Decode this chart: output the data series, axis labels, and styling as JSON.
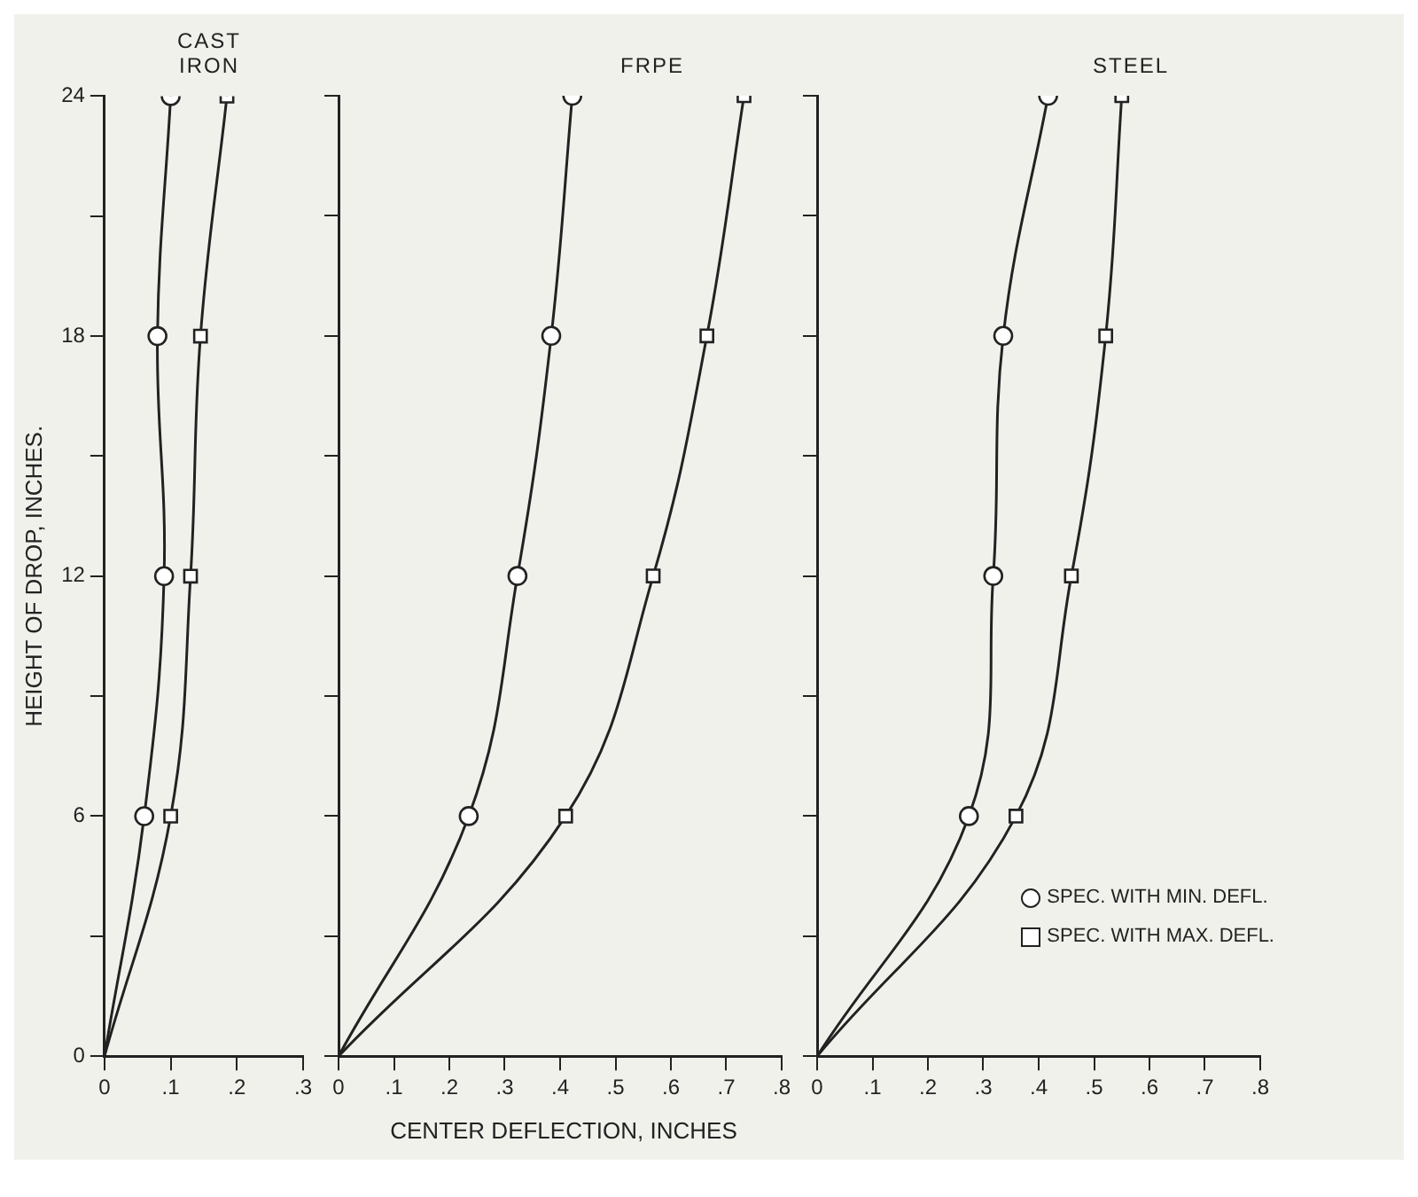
{
  "chart_data": [
    {
      "type": "line",
      "title": "CAST IRON",
      "ylabel": "HEIGHT OF DROP, INCHES.",
      "xlim": [
        0,
        0.3
      ],
      "xticks": [
        {
          "value": 0,
          "label": "0"
        },
        {
          "value": 0.1,
          "label": ".1"
        },
        {
          "value": 0.2,
          "label": ".2"
        },
        {
          "value": 0.3,
          "label": ".3"
        }
      ],
      "ylim": [
        0,
        24
      ],
      "yticks": [
        0,
        {
          "value": 3,
          "label": null
        },
        6,
        {
          "value": 9,
          "label": null
        },
        12,
        {
          "value": 15,
          "label": null
        },
        18,
        {
          "value": 21,
          "label": null
        },
        24
      ],
      "grid": false,
      "legend": false,
      "series": [
        {
          "color": "#222222",
          "marker": "circle",
          "x": [
            0,
            0.06,
            0.09,
            0.08,
            0.1
          ],
          "values": [
            0,
            6,
            12,
            18,
            24
          ]
        },
        {
          "color": "#222222",
          "marker": "square",
          "x": [
            0,
            0.1,
            0.13,
            0.145,
            0.185
          ],
          "values": [
            0,
            6,
            12,
            18,
            24
          ]
        }
      ]
    },
    {
      "type": "line",
      "title": "FRPE",
      "xlabel": "CENTER DEFLECTION, INCHES",
      "xlim": [
        0,
        0.8
      ],
      "xticks": [
        {
          "value": 0,
          "label": "0"
        },
        {
          "value": 0.1,
          "label": ".1"
        },
        {
          "value": 0.2,
          "label": ".2"
        },
        {
          "value": 0.3,
          "label": ".3"
        },
        {
          "value": 0.4,
          "label": ".4"
        },
        {
          "value": 0.5,
          "label": ".5"
        },
        {
          "value": 0.6,
          "label": ".6"
        },
        {
          "value": 0.7,
          "label": ".7"
        },
        {
          "value": 0.8,
          "label": ".8"
        }
      ],
      "ylim": [
        0,
        24
      ],
      "yticks": [
        {
          "value": 0,
          "label": null
        },
        {
          "value": 3,
          "label": null
        },
        {
          "value": 6,
          "label": null
        },
        {
          "value": 9,
          "label": null
        },
        {
          "value": 12,
          "label": null
        },
        {
          "value": 15,
          "label": null
        },
        {
          "value": 18,
          "label": null
        },
        {
          "value": 21,
          "label": null
        },
        {
          "value": 24,
          "label": null
        }
      ],
      "tick_labels": "x",
      "grid": false,
      "legend": false,
      "series": [
        {
          "color": "#222222",
          "marker": "circle",
          "x": [
            0,
            0.235,
            0.323,
            0.384,
            0.422
          ],
          "values": [
            0,
            6,
            12,
            18,
            24
          ]
        },
        {
          "color": "#222222",
          "marker": "square",
          "x": [
            0,
            0.41,
            0.568,
            0.665,
            0.732
          ],
          "values": [
            0,
            6,
            12,
            18,
            24
          ]
        }
      ]
    },
    {
      "type": "line",
      "title": "STEEL",
      "xlim": [
        0,
        0.8
      ],
      "xticks": [
        {
          "value": 0,
          "label": "0"
        },
        {
          "value": 0.1,
          "label": ".1"
        },
        {
          "value": 0.2,
          "label": ".2"
        },
        {
          "value": 0.3,
          "label": ".3"
        },
        {
          "value": 0.4,
          "label": ".4"
        },
        {
          "value": 0.5,
          "label": ".5"
        },
        {
          "value": 0.6,
          "label": ".6"
        },
        {
          "value": 0.7,
          "label": ".7"
        },
        {
          "value": 0.8,
          "label": ".8"
        }
      ],
      "ylim": [
        0,
        24
      ],
      "yticks": [
        {
          "value": 0,
          "label": null
        },
        {
          "value": 3,
          "label": null
        },
        {
          "value": 6,
          "label": null
        },
        {
          "value": 9,
          "label": null
        },
        {
          "value": 12,
          "label": null
        },
        {
          "value": 15,
          "label": null
        },
        {
          "value": 18,
          "label": null
        },
        {
          "value": 21,
          "label": null
        },
        {
          "value": 24,
          "label": null
        }
      ],
      "tick_labels": "x",
      "grid": false,
      "legend": "bottom right",
      "series": [
        {
          "name": "SPEC. WITH MIN. DEFL.",
          "color": "#222222",
          "marker": "circle",
          "x": [
            0,
            0.274,
            0.318,
            0.336,
            0.417
          ],
          "values": [
            0,
            6,
            12,
            18,
            24
          ]
        },
        {
          "name": "SPEC. WITH MAX. DEFL.",
          "color": "#222222",
          "marker": "square",
          "x": [
            0,
            0.359,
            0.459,
            0.521,
            0.55
          ],
          "values": [
            0,
            6,
            12,
            18,
            24
          ]
        }
      ]
    }
  ]
}
